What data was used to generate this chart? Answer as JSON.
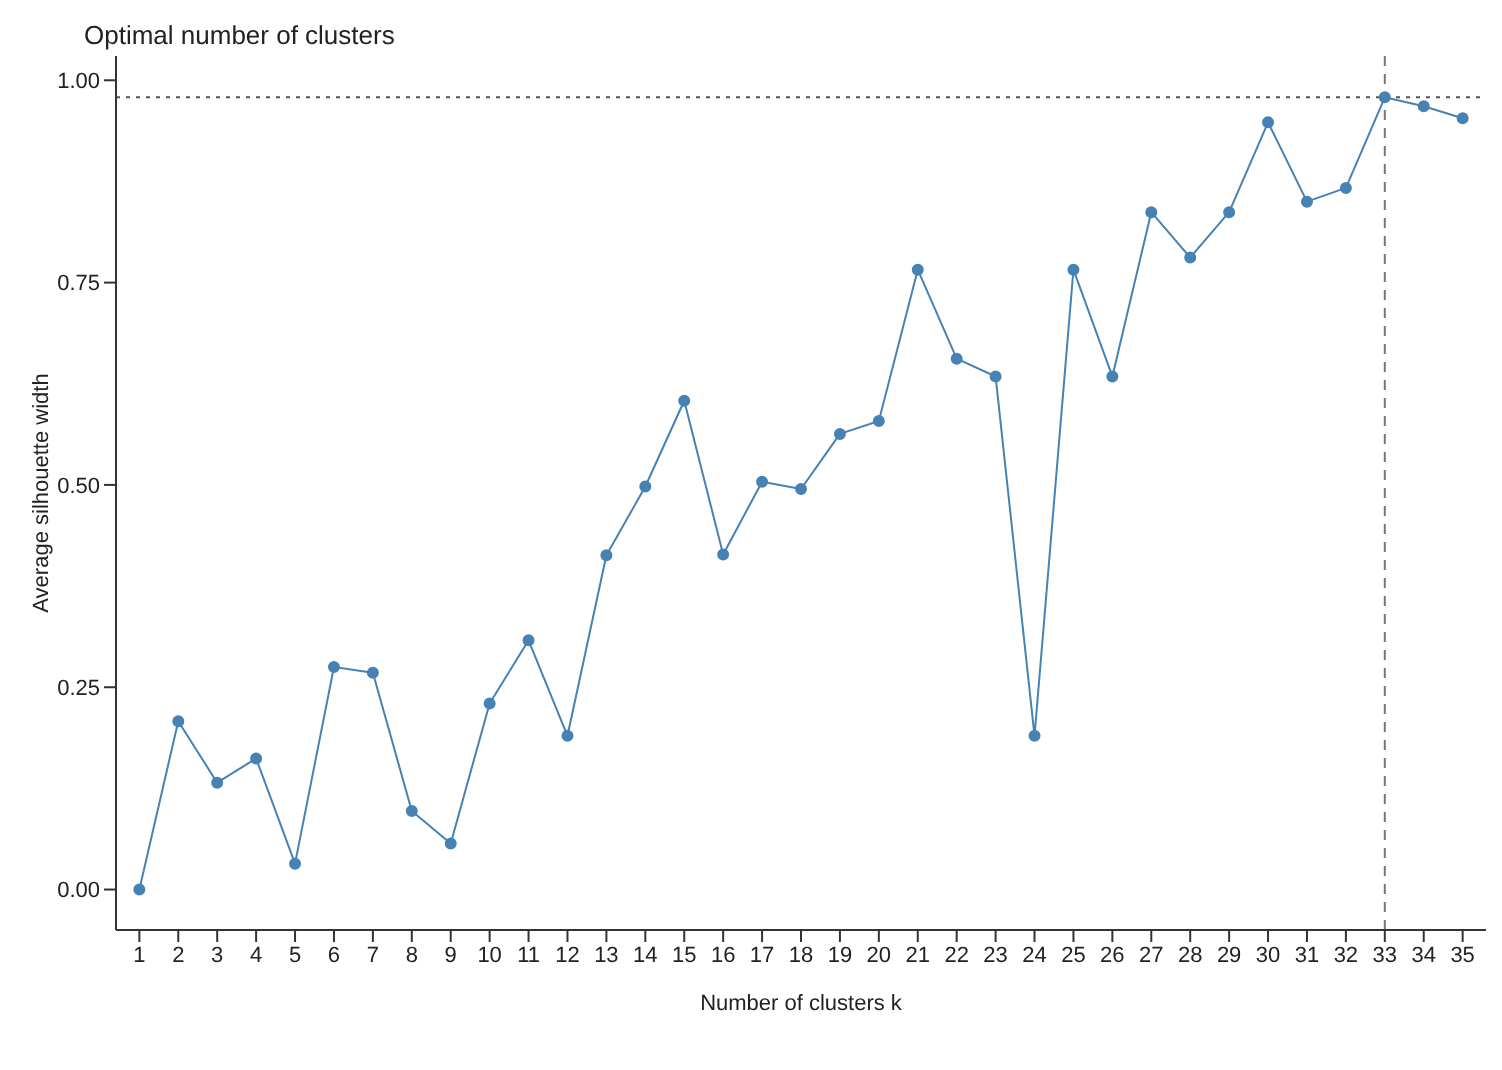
{
  "chart_data": {
    "type": "line",
    "title": "Optimal number of clusters",
    "xlabel": "Number of clusters k",
    "ylabel": "Average silhouette width",
    "x": [
      1,
      2,
      3,
      4,
      5,
      6,
      7,
      8,
      9,
      10,
      11,
      12,
      13,
      14,
      15,
      16,
      17,
      18,
      19,
      20,
      21,
      22,
      23,
      24,
      25,
      26,
      27,
      28,
      29,
      30,
      31,
      32,
      33,
      34,
      35
    ],
    "series": [
      {
        "color": "#4682b4",
        "values": [
          0.0,
          0.208,
          0.132,
          0.162,
          0.032,
          0.275,
          0.268,
          0.097,
          0.057,
          0.23,
          0.308,
          0.19,
          0.413,
          0.498,
          0.604,
          0.414,
          0.504,
          0.495,
          0.563,
          0.579,
          0.766,
          0.656,
          0.634,
          0.19,
          0.766,
          0.634,
          0.837,
          0.781,
          0.837,
          0.948,
          0.85,
          0.867,
          0.979,
          0.968,
          0.953
        ]
      }
    ],
    "xlim": [
      0.4,
      35.6
    ],
    "xticks": [
      1,
      2,
      3,
      4,
      5,
      6,
      7,
      8,
      9,
      10,
      11,
      12,
      13,
      14,
      15,
      16,
      17,
      18,
      19,
      20,
      21,
      22,
      23,
      24,
      25,
      26,
      27,
      28,
      29,
      30,
      31,
      32,
      33,
      34,
      35
    ],
    "ylim": [
      -0.05,
      1.03
    ],
    "yticks": [
      {
        "value": 0,
        "label": "0.00"
      },
      {
        "value": 0.25,
        "label": "0.25"
      },
      {
        "value": 0.5,
        "label": "0.50"
      },
      {
        "value": 0.75,
        "label": "0.75"
      },
      {
        "value": 1,
        "label": "1.00"
      }
    ],
    "ref_lines": [
      {
        "axis": "y",
        "value": 0.979,
        "line_style": "dotted",
        "color": "#555555"
      },
      {
        "axis": "x",
        "value": 33,
        "line_style": "dashed",
        "color": "#777777"
      }
    ],
    "grid": false,
    "legend": false,
    "marker": "circle",
    "line_style": "solid"
  }
}
